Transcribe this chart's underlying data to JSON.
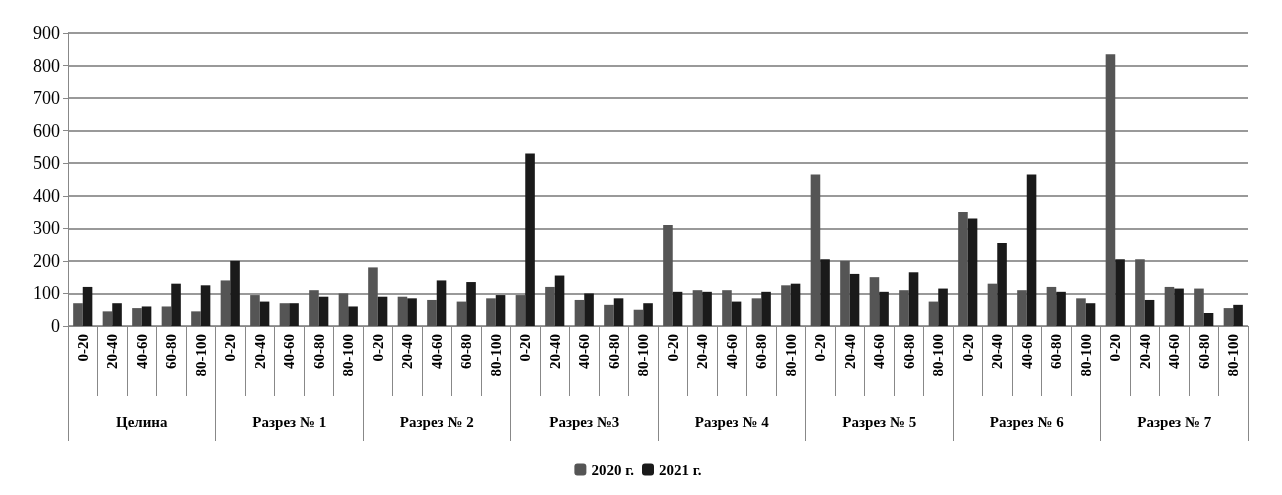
{
  "chart_data": {
    "type": "bar",
    "categories": [
      "0-20",
      "20-40",
      "40-60",
      "60-80",
      "80-100",
      "0-20",
      "20-40",
      "40-60",
      "60-80",
      "80-100",
      "0-20",
      "20-40",
      "40-60",
      "60-80",
      "80-100",
      "0-20",
      "20-40",
      "40-60",
      "60-80",
      "80-100",
      "0-20",
      "20-40",
      "40-60",
      "60-80",
      "80-100",
      "0-20",
      "20-40",
      "40-60",
      "60-80",
      "80-100",
      "0-20",
      "20-40",
      "40-60",
      "60-80",
      "80-100",
      "0-20",
      "20-40",
      "40-60",
      "60-80",
      "80-100"
    ],
    "annotations": [
      "Целина",
      "Разрез № 1",
      "Разрез № 2",
      "Разрез №3",
      "Разрез № 4",
      "Разрез № 5",
      "Разрез № 6",
      "Разрез № 7"
    ],
    "series": [
      {
        "name": "2020 г.",
        "color": "#555555",
        "values": [
          70,
          45,
          55,
          60,
          45,
          140,
          95,
          70,
          110,
          100,
          180,
          90,
          80,
          75,
          85,
          95,
          120,
          80,
          65,
          50,
          310,
          110,
          110,
          85,
          125,
          465,
          200,
          150,
          110,
          75,
          350,
          130,
          110,
          120,
          85,
          835,
          205,
          120,
          115,
          55
        ]
      },
      {
        "name": "2021 г.",
        "color": "#1a1a1a",
        "values": [
          120,
          70,
          60,
          130,
          125,
          200,
          75,
          70,
          90,
          60,
          90,
          85,
          140,
          135,
          95,
          530,
          155,
          100,
          85,
          70,
          105,
          105,
          75,
          105,
          130,
          205,
          160,
          105,
          165,
          115,
          330,
          255,
          465,
          105,
          70,
          205,
          80,
          115,
          40,
          65
        ]
      }
    ],
    "ylim": [
      0,
      900
    ],
    "yticks": [
      0,
      100,
      200,
      300,
      400,
      500,
      600,
      700,
      800,
      900
    ],
    "grid": "y",
    "legend": "bottom"
  }
}
